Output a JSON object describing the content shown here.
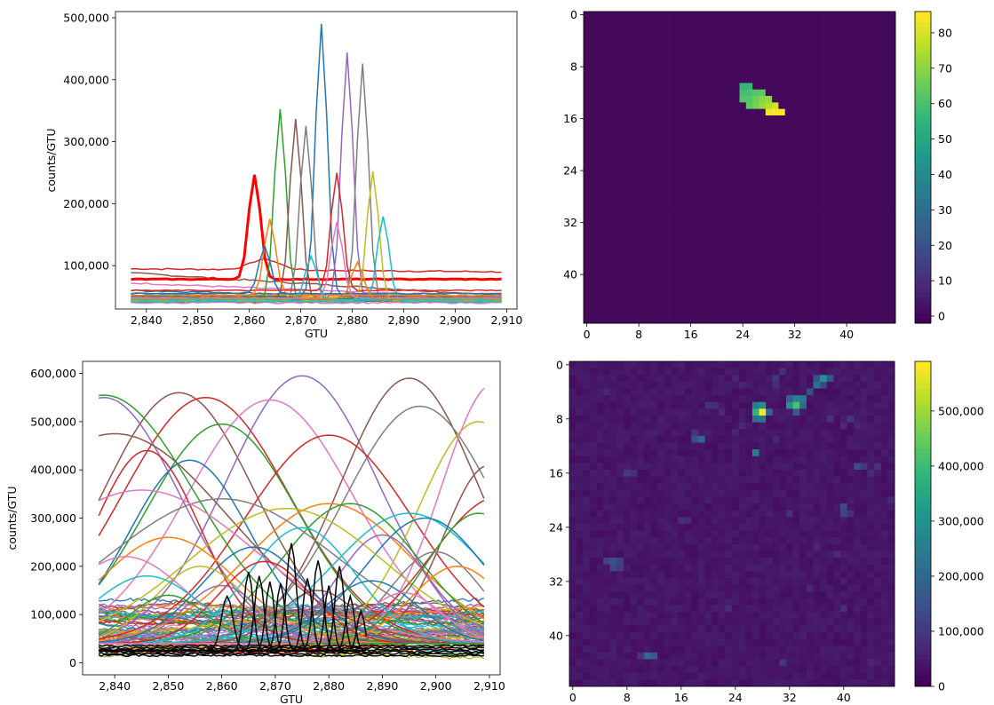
{
  "chart_data": [
    {
      "type": "line",
      "xlabel": "GTU",
      "ylabel": "counts/GTU",
      "xlim": [
        2834,
        2912
      ],
      "ylim": [
        30000,
        510000
      ],
      "xticks": [
        2840,
        2850,
        2860,
        2870,
        2880,
        2890,
        2900,
        2910
      ],
      "xtick_labels": [
        "2,840",
        "2,850",
        "2,860",
        "2,870",
        "2,880",
        "2,890",
        "2,900",
        "2,910"
      ],
      "yticks": [
        100000,
        200000,
        300000,
        400000,
        500000
      ],
      "ytick_labels": [
        "100,000",
        "200,000",
        "300,000",
        "400,000",
        "500,000"
      ],
      "grid": false,
      "x_range": [
        2837,
        2909
      ],
      "peaks": [
        {
          "color": "#ff0000",
          "x": 2861,
          "y": 246000,
          "base": 78000
        },
        {
          "color": "#1f77b4",
          "x": 2874,
          "y": 490000,
          "base": 50000
        },
        {
          "color": "#2ca02c",
          "x": 2866,
          "y": 352000,
          "base": 45000
        },
        {
          "color": "#8c564b",
          "x": 2869,
          "y": 336000,
          "base": 47000
        },
        {
          "color": "#7f7f7f",
          "x": 2871,
          "y": 326000,
          "base": 44000
        },
        {
          "color": "#9467bd",
          "x": 2879,
          "y": 444000,
          "base": 46000
        },
        {
          "color": "#7f7f7f",
          "x": 2882,
          "y": 426000,
          "base": 44000
        },
        {
          "color": "#d62728",
          "x": 2877,
          "y": 250000,
          "base": 60000
        },
        {
          "color": "#bcbd22",
          "x": 2884,
          "y": 252000,
          "base": 43000
        },
        {
          "color": "#17becf",
          "x": 2886,
          "y": 180000,
          "base": 42000
        },
        {
          "color": "#ff7f0e",
          "x": 2864,
          "y": 175000,
          "base": 52000
        },
        {
          "color": "#1f77b4",
          "x": 2863,
          "y": 132000,
          "base": 55000
        },
        {
          "color": "#e377c2",
          "x": 2877,
          "y": 170000,
          "base": 48000
        },
        {
          "color": "#17becf",
          "x": 2872,
          "y": 115000,
          "base": 45000
        },
        {
          "color": "#ff7f0e",
          "x": 2881,
          "y": 105000,
          "base": 47000
        }
      ],
      "flat_series": [
        {
          "color": "#d62728",
          "start": 95000,
          "end": 90000,
          "bump": 112000,
          "bump_x": 2863
        },
        {
          "color": "#8c564b",
          "start": 88000,
          "end": 52000
        },
        {
          "color": "#e377c2",
          "start": 72000,
          "end": 48000
        },
        {
          "color": "#1f77b4",
          "start": 60000,
          "end": 47000
        },
        {
          "color": "#2ca02c",
          "start": 55000,
          "end": 44000
        },
        {
          "color": "#ff7f0e",
          "start": 52000,
          "end": 55000
        },
        {
          "color": "#9467bd",
          "start": 47000,
          "end": 42000
        },
        {
          "color": "#7f7f7f",
          "start": 45000,
          "end": 46000
        },
        {
          "color": "#bcbd22",
          "start": 50000,
          "end": 48000
        },
        {
          "color": "#17becf",
          "start": 43000,
          "end": 41000
        },
        {
          "color": "#2ca02c",
          "start": 41000,
          "end": 43000
        },
        {
          "color": "#e377c2",
          "start": 40000,
          "end": 40000
        }
      ]
    },
    {
      "type": "heatmap",
      "grid_size": 48,
      "xticks": [
        0,
        8,
        16,
        24,
        32,
        40
      ],
      "yticks": [
        0,
        8,
        16,
        24,
        32,
        40
      ],
      "colorbar": {
        "min": -2,
        "max": 86,
        "ticks": [
          0,
          10,
          20,
          30,
          40,
          50,
          60,
          70,
          80
        ]
      },
      "background": 0,
      "cells": [
        [
          24,
          11,
          56
        ],
        [
          25,
          11,
          56
        ],
        [
          24,
          12,
          60
        ],
        [
          25,
          12,
          60
        ],
        [
          26,
          12,
          62
        ],
        [
          27,
          12,
          64
        ],
        [
          24,
          13,
          62
        ],
        [
          25,
          13,
          62
        ],
        [
          26,
          13,
          66
        ],
        [
          27,
          13,
          70
        ],
        [
          28,
          13,
          72
        ],
        [
          25,
          14,
          64
        ],
        [
          26,
          14,
          68
        ],
        [
          27,
          14,
          72
        ],
        [
          28,
          14,
          76
        ],
        [
          29,
          14,
          80
        ],
        [
          28,
          15,
          84
        ],
        [
          29,
          15,
          86
        ],
        [
          30,
          15,
          86
        ]
      ]
    },
    {
      "type": "line",
      "xlabel": "GTU",
      "ylabel": "counts/GTU",
      "xlim": [
        2834,
        2912
      ],
      "ylim": [
        -25000,
        625000
      ],
      "xticks": [
        2840,
        2850,
        2860,
        2870,
        2880,
        2890,
        2900,
        2910
      ],
      "xtick_labels": [
        "2,840",
        "2,850",
        "2,860",
        "2,870",
        "2,880",
        "2,890",
        "2,900",
        "2,910"
      ],
      "yticks": [
        0,
        100000,
        200000,
        300000,
        400000,
        500000,
        600000
      ],
      "ytick_labels": [
        "0",
        "100,000",
        "200,000",
        "300,000",
        "400,000",
        "500,000",
        "600,000"
      ],
      "grid": false,
      "x_range": [
        2837,
        2909
      ],
      "waves": [
        {
          "color": "#8c564b",
          "c": 2852,
          "a": 560000,
          "w": 20
        },
        {
          "color": "#d62728",
          "c": 2857,
          "a": 550000,
          "w": 22
        },
        {
          "color": "#9467bd",
          "c": 2875,
          "a": 595000,
          "w": 20
        },
        {
          "color": "#e377c2",
          "c": 2869,
          "a": 545000,
          "w": 22
        },
        {
          "color": "#8c564b",
          "c": 2895,
          "a": 590000,
          "w": 18
        },
        {
          "color": "#7f7f7f",
          "c": 2897,
          "a": 532000,
          "w": 20
        },
        {
          "color": "#2ca02c",
          "c": 2860,
          "a": 495000,
          "w": 20
        },
        {
          "color": "#d62728",
          "c": 2880,
          "a": 472000,
          "w": 22
        },
        {
          "color": "#bcbd22",
          "c": 2908,
          "a": 500000,
          "w": 16
        },
        {
          "color": "#e377c2",
          "c": 2911,
          "a": 580000,
          "w": 14
        },
        {
          "color": "#1f77b4",
          "c": 2854,
          "a": 420000,
          "w": 16
        },
        {
          "color": "#ff7f0e",
          "c": 2880,
          "a": 330000,
          "w": 22
        },
        {
          "color": "#17becf",
          "c": 2895,
          "a": 310000,
          "w": 20
        },
        {
          "color": "#2ca02c",
          "c": 2884,
          "a": 330000,
          "w": 18
        },
        {
          "color": "#9467bd",
          "c": 2838,
          "a": 550000,
          "w": 20
        },
        {
          "color": "#2ca02c",
          "c": 2838,
          "a": 555000,
          "w": 24
        },
        {
          "color": "#d62728",
          "c": 2846,
          "a": 440000,
          "w": 14
        },
        {
          "color": "#8c564b",
          "c": 2840,
          "a": 475000,
          "w": 30
        },
        {
          "color": "#8c564b",
          "c": 2910,
          "a": 410000,
          "w": 12
        },
        {
          "color": "#d62728",
          "c": 2912,
          "a": 345000,
          "w": 18
        },
        {
          "color": "#7f7f7f",
          "c": 2860,
          "a": 340000,
          "w": 30
        },
        {
          "color": "#e377c2",
          "c": 2845,
          "a": 358000,
          "w": 30
        },
        {
          "color": "#1f77b4",
          "c": 2898,
          "a": 300000,
          "w": 16
        },
        {
          "color": "#bcbd22",
          "c": 2872,
          "a": 320000,
          "w": 26
        },
        {
          "color": "#ff7f0e",
          "c": 2850,
          "a": 260000,
          "w": 18
        },
        {
          "color": "#17becf",
          "c": 2875,
          "a": 280000,
          "w": 14
        },
        {
          "color": "#9467bd",
          "c": 2890,
          "a": 265000,
          "w": 12
        },
        {
          "color": "#2ca02c",
          "c": 2908,
          "a": 310000,
          "w": 14
        },
        {
          "color": "#1f77b4",
          "c": 2866,
          "a": 240000,
          "w": 14
        },
        {
          "color": "#e377c2",
          "c": 2842,
          "a": 220000,
          "w": 16
        },
        {
          "color": "#7f7f7f",
          "c": 2900,
          "a": 230000,
          "w": 12
        },
        {
          "color": "#d62728",
          "c": 2868,
          "a": 210000,
          "w": 12
        },
        {
          "color": "#bcbd22",
          "c": 2856,
          "a": 200000,
          "w": 12
        },
        {
          "color": "#17becf",
          "c": 2846,
          "a": 180000,
          "w": 14
        },
        {
          "color": "#ff7f0e",
          "c": 2904,
          "a": 200000,
          "w": 12
        },
        {
          "color": "#9467bd",
          "c": 2860,
          "a": 160000,
          "w": 10
        },
        {
          "color": "#1f77b4",
          "c": 2888,
          "a": 170000,
          "w": 12
        },
        {
          "color": "#8c564b",
          "c": 2878,
          "a": 150000,
          "w": 10
        },
        {
          "color": "#2ca02c",
          "c": 2850,
          "a": 140000,
          "w": 10
        },
        {
          "color": "#e377c2",
          "c": 2894,
          "a": 145000,
          "w": 10
        }
      ],
      "black_peaks": [
        {
          "c": 2861,
          "a": 138000,
          "w": 1.5
        },
        {
          "c": 2865,
          "a": 188000,
          "w": 1.2
        },
        {
          "c": 2867,
          "a": 180000,
          "w": 1.2
        },
        {
          "c": 2869,
          "a": 168000,
          "w": 1.1
        },
        {
          "c": 2871,
          "a": 165000,
          "w": 1.1
        },
        {
          "c": 2873,
          "a": 248000,
          "w": 1.3
        },
        {
          "c": 2876,
          "a": 175000,
          "w": 1.2
        },
        {
          "c": 2878,
          "a": 212000,
          "w": 1.3
        },
        {
          "c": 2880,
          "a": 160000,
          "w": 1.1
        },
        {
          "c": 2882,
          "a": 200000,
          "w": 1.2
        },
        {
          "c": 2884,
          "a": 138000,
          "w": 1.1
        },
        {
          "c": 2886,
          "a": 108000,
          "w": 1.0
        }
      ]
    },
    {
      "type": "heatmap",
      "grid_size": 48,
      "xticks": [
        0,
        8,
        16,
        24,
        32,
        40
      ],
      "yticks": [
        0,
        8,
        16,
        24,
        32,
        40
      ],
      "colorbar": {
        "min": 0,
        "max": 590000,
        "ticks": [
          0,
          100000,
          200000,
          300000,
          400000,
          500000
        ],
        "tick_labels": [
          "0",
          "100,000",
          "200,000",
          "300,000",
          "400,000",
          "500,000"
        ]
      },
      "background": 30000,
      "cells": [
        [
          28,
          7,
          590000
        ],
        [
          27,
          7,
          380000
        ],
        [
          28,
          6,
          300000
        ],
        [
          27,
          6,
          260000
        ],
        [
          29,
          7,
          200000
        ],
        [
          27,
          8,
          220000
        ],
        [
          28,
          8,
          240000
        ],
        [
          33,
          6,
          420000
        ],
        [
          32,
          6,
          300000
        ],
        [
          33,
          5,
          260000
        ],
        [
          34,
          5,
          230000
        ],
        [
          32,
          5,
          180000
        ],
        [
          34,
          6,
          200000
        ],
        [
          33,
          7,
          170000
        ],
        [
          37,
          2,
          300000
        ],
        [
          36,
          3,
          220000
        ],
        [
          38,
          2,
          160000
        ],
        [
          36,
          2,
          150000
        ],
        [
          35,
          4,
          140000
        ],
        [
          37,
          3,
          130000
        ],
        [
          27,
          13,
          260000
        ],
        [
          19,
          11,
          200000
        ],
        [
          18,
          11,
          140000
        ],
        [
          18,
          10,
          90000
        ],
        [
          11,
          43,
          200000
        ],
        [
          12,
          43,
          160000
        ],
        [
          10,
          43,
          90000
        ],
        [
          6,
          29,
          150000
        ],
        [
          5,
          29,
          120000
        ],
        [
          7,
          29,
          110000
        ],
        [
          6,
          30,
          130000
        ],
        [
          7,
          30,
          100000
        ],
        [
          40,
          21,
          140000
        ],
        [
          40,
          22,
          120000
        ],
        [
          41,
          22,
          80000
        ],
        [
          42,
          15,
          140000
        ],
        [
          43,
          15,
          100000
        ],
        [
          45,
          15,
          90000
        ],
        [
          8,
          16,
          100000
        ],
        [
          9,
          16,
          80000
        ],
        [
          32,
          22,
          80000
        ],
        [
          16,
          23,
          80000
        ],
        [
          17,
          23,
          70000
        ],
        [
          48,
          20,
          90000
        ],
        [
          47,
          20,
          70000
        ],
        [
          31,
          44,
          90000
        ],
        [
          23,
          36,
          70000
        ],
        [
          40,
          36,
          80000
        ],
        [
          39,
          28,
          70000
        ],
        [
          30,
          2,
          90000
        ],
        [
          31,
          1,
          80000
        ],
        [
          30,
          3,
          70000
        ],
        [
          21,
          6,
          80000
        ],
        [
          22,
          7,
          70000
        ],
        [
          20,
          6,
          80000
        ],
        [
          41,
          8,
          90000
        ],
        [
          40,
          9,
          70000
        ],
        [
          38,
          8,
          80000
        ],
        [
          42,
          9,
          60000
        ],
        [
          24,
          10,
          60000
        ],
        [
          25,
          9,
          70000
        ],
        [
          30,
          11,
          60000
        ],
        [
          24,
          2,
          60000
        ],
        [
          25,
          3,
          60000
        ],
        [
          44,
          16,
          70000
        ],
        [
          36,
          27,
          60000
        ],
        [
          35,
          33,
          60000
        ],
        [
          5,
          4,
          60000
        ],
        [
          2,
          20,
          50000
        ],
        [
          44,
          44,
          60000
        ]
      ]
    }
  ]
}
